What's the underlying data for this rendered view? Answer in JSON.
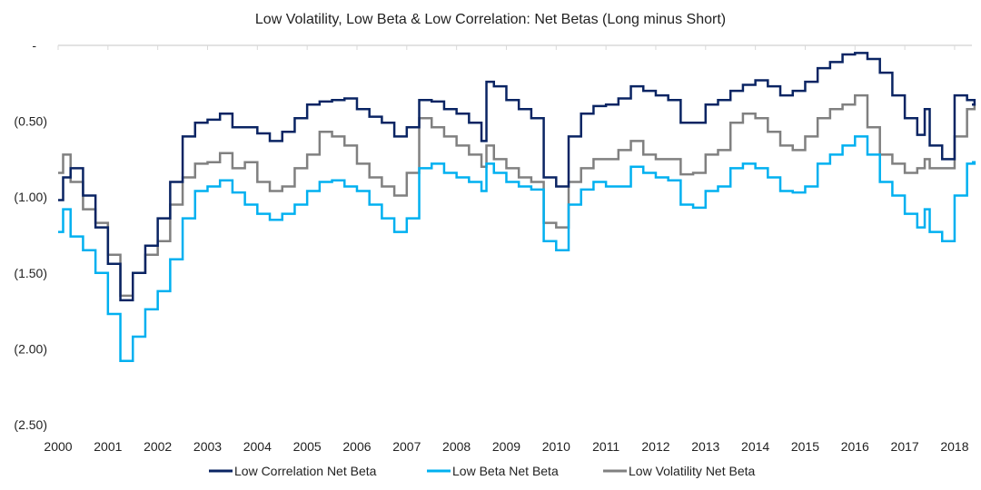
{
  "chart_data": {
    "type": "line",
    "step": true,
    "title": "Low Volatility, Low Beta & Low Correlation: Net Betas (Long minus Short)",
    "xlabel": "",
    "ylabel": "",
    "x_tick_labels": [
      "2000",
      "2001",
      "2002",
      "2003",
      "2004",
      "2005",
      "2006",
      "2007",
      "2008",
      "2009",
      "2010",
      "2011",
      "2012",
      "2013",
      "2014",
      "2015",
      "2016",
      "2017",
      "2018"
    ],
    "y_ticks": [
      0,
      -0.5,
      -1.0,
      -1.5,
      -2.0,
      -2.5
    ],
    "y_tick_labels": [
      "-",
      "(0.50)",
      "(1.00)",
      "(1.50)",
      "(2.00)",
      "(2.50)"
    ],
    "ylim": [
      -2.5,
      0
    ],
    "xlim": [
      2000,
      2018.4
    ],
    "grid": "top line only",
    "legend_position": "bottom",
    "x": [
      2000.0,
      2000.1,
      2000.25,
      2000.5,
      2000.75,
      2001.0,
      2001.25,
      2001.5,
      2001.75,
      2002.0,
      2002.25,
      2002.5,
      2002.75,
      2003.0,
      2003.25,
      2003.5,
      2003.75,
      2004.0,
      2004.25,
      2004.5,
      2004.75,
      2005.0,
      2005.25,
      2005.5,
      2005.75,
      2006.0,
      2006.25,
      2006.5,
      2006.75,
      2007.0,
      2007.25,
      2007.5,
      2007.75,
      2008.0,
      2008.25,
      2008.5,
      2008.6,
      2008.75,
      2009.0,
      2009.25,
      2009.5,
      2009.75,
      2010.0,
      2010.25,
      2010.5,
      2010.75,
      2011.0,
      2011.25,
      2011.5,
      2011.75,
      2012.0,
      2012.25,
      2012.5,
      2012.75,
      2013.0,
      2013.25,
      2013.5,
      2013.75,
      2014.0,
      2014.25,
      2014.5,
      2014.75,
      2015.0,
      2015.25,
      2015.5,
      2015.75,
      2016.0,
      2016.25,
      2016.5,
      2016.75,
      2017.0,
      2017.25,
      2017.4,
      2017.5,
      2017.75,
      2018.0,
      2018.25,
      2018.4
    ],
    "series": [
      {
        "name": "Low Correlation Net Beta",
        "color": "#0a2463",
        "values": [
          -1.02,
          -0.87,
          -0.81,
          -0.99,
          -1.2,
          -1.44,
          -1.68,
          -1.5,
          -1.32,
          -1.14,
          -0.9,
          -0.6,
          -0.51,
          -0.49,
          -0.45,
          -0.54,
          -0.54,
          -0.58,
          -0.63,
          -0.57,
          -0.48,
          -0.39,
          -0.37,
          -0.36,
          -0.35,
          -0.42,
          -0.47,
          -0.51,
          -0.6,
          -0.54,
          -0.36,
          -0.37,
          -0.42,
          -0.45,
          -0.51,
          -0.63,
          -0.24,
          -0.27,
          -0.36,
          -0.42,
          -0.48,
          -0.87,
          -0.93,
          -0.6,
          -0.45,
          -0.4,
          -0.39,
          -0.35,
          -0.27,
          -0.3,
          -0.33,
          -0.36,
          -0.51,
          -0.51,
          -0.39,
          -0.36,
          -0.3,
          -0.26,
          -0.23,
          -0.27,
          -0.33,
          -0.3,
          -0.24,
          -0.15,
          -0.11,
          -0.06,
          -0.05,
          -0.09,
          -0.18,
          -0.33,
          -0.48,
          -0.59,
          -0.42,
          -0.66,
          -0.75,
          -0.33,
          -0.36,
          -0.39
        ]
      },
      {
        "name": "Low Beta Net Beta",
        "color": "#00b0f0",
        "values": [
          -1.23,
          -1.08,
          -1.26,
          -1.35,
          -1.5,
          -1.77,
          -2.08,
          -1.92,
          -1.74,
          -1.62,
          -1.41,
          -1.14,
          -0.96,
          -0.93,
          -0.89,
          -0.97,
          -1.05,
          -1.11,
          -1.15,
          -1.11,
          -1.05,
          -0.96,
          -0.9,
          -0.89,
          -0.93,
          -0.96,
          -1.05,
          -1.14,
          -1.23,
          -1.14,
          -0.81,
          -0.78,
          -0.84,
          -0.87,
          -0.9,
          -0.96,
          -0.78,
          -0.84,
          -0.9,
          -0.93,
          -0.95,
          -1.29,
          -1.35,
          -1.05,
          -0.95,
          -0.9,
          -0.93,
          -0.93,
          -0.8,
          -0.84,
          -0.87,
          -0.89,
          -1.05,
          -1.07,
          -0.96,
          -0.93,
          -0.81,
          -0.78,
          -0.81,
          -0.87,
          -0.96,
          -0.97,
          -0.93,
          -0.78,
          -0.72,
          -0.66,
          -0.6,
          -0.72,
          -0.9,
          -0.99,
          -1.11,
          -1.2,
          -1.08,
          -1.23,
          -1.29,
          -0.99,
          -0.78,
          -0.77
        ]
      },
      {
        "name": "Low Volatility Net Beta",
        "color": "#808080",
        "values": [
          -0.84,
          -0.72,
          -0.9,
          -1.08,
          -1.17,
          -1.38,
          -1.65,
          -1.5,
          -1.38,
          -1.29,
          -1.05,
          -0.87,
          -0.78,
          -0.77,
          -0.71,
          -0.81,
          -0.77,
          -0.9,
          -0.96,
          -0.93,
          -0.81,
          -0.72,
          -0.57,
          -0.6,
          -0.66,
          -0.78,
          -0.87,
          -0.93,
          -0.99,
          -0.84,
          -0.48,
          -0.54,
          -0.6,
          -0.66,
          -0.72,
          -0.8,
          -0.66,
          -0.75,
          -0.81,
          -0.87,
          -0.9,
          -1.17,
          -1.2,
          -0.9,
          -0.81,
          -0.75,
          -0.75,
          -0.69,
          -0.63,
          -0.72,
          -0.75,
          -0.75,
          -0.85,
          -0.84,
          -0.72,
          -0.69,
          -0.51,
          -0.45,
          -0.48,
          -0.57,
          -0.66,
          -0.69,
          -0.6,
          -0.48,
          -0.42,
          -0.39,
          -0.33,
          -0.54,
          -0.72,
          -0.78,
          -0.84,
          -0.81,
          -0.75,
          -0.81,
          -0.81,
          -0.6,
          -0.42,
          -0.39
        ]
      }
    ]
  }
}
